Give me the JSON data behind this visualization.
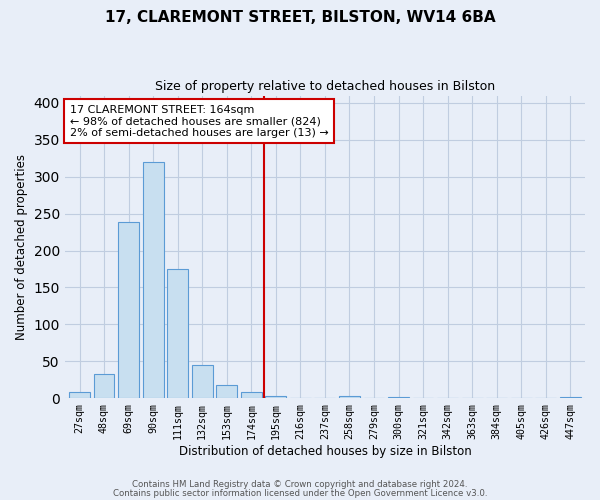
{
  "title": "17, CLAREMONT STREET, BILSTON, WV14 6BA",
  "subtitle": "Size of property relative to detached houses in Bilston",
  "xlabel": "Distribution of detached houses by size in Bilston",
  "ylabel": "Number of detached properties",
  "bar_labels": [
    "27sqm",
    "48sqm",
    "69sqm",
    "90sqm",
    "111sqm",
    "132sqm",
    "153sqm",
    "174sqm",
    "195sqm",
    "216sqm",
    "237sqm",
    "258sqm",
    "279sqm",
    "300sqm",
    "321sqm",
    "342sqm",
    "363sqm",
    "384sqm",
    "405sqm",
    "426sqm",
    "447sqm"
  ],
  "bar_values": [
    8,
    32,
    238,
    320,
    175,
    45,
    18,
    8,
    3,
    0,
    0,
    3,
    0,
    1,
    0,
    0,
    0,
    0,
    0,
    0,
    2
  ],
  "bar_color": "#c8dff0",
  "bar_edge_color": "#5b9bd5",
  "vline_x_index": 7,
  "vline_color": "#cc0000",
  "annotation_title": "17 CLAREMONT STREET: 164sqm",
  "annotation_line1": "← 98% of detached houses are smaller (824)",
  "annotation_line2": "2% of semi-detached houses are larger (13) →",
  "annotation_box_color": "#ffffff",
  "annotation_border_color": "#cc0000",
  "ylim": [
    0,
    410
  ],
  "yticks": [
    0,
    50,
    100,
    150,
    200,
    250,
    300,
    350,
    400
  ],
  "footer1": "Contains HM Land Registry data © Crown copyright and database right 2024.",
  "footer2": "Contains public sector information licensed under the Open Government Licence v3.0.",
  "bg_color": "#e8eef8",
  "grid_color": "#c0cde0",
  "title_fontsize": 11,
  "subtitle_fontsize": 9
}
